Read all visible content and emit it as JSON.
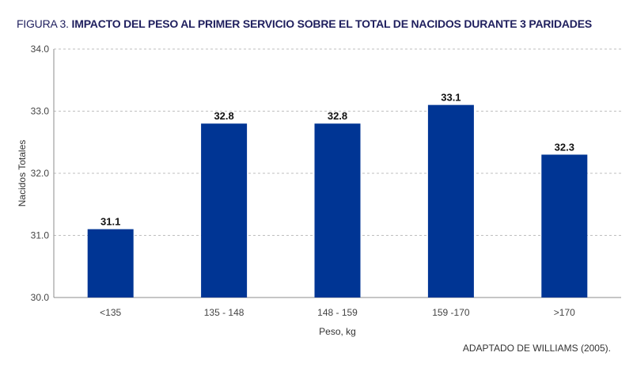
{
  "figure": {
    "number": "FIGURA 3.",
    "title": "IMPACTO DEL PESO AL PRIMER SERVICIO SOBRE EL TOTAL DE NACIDOS DURANTE 3 PARIDADES",
    "source": "ADAPTADO DE WILLIAMS (2005)."
  },
  "chart_data": {
    "type": "bar",
    "categories": [
      "<135",
      "135 - 148",
      "148 - 159",
      "159 -170",
      ">170"
    ],
    "values": [
      31.1,
      32.8,
      32.8,
      33.1,
      32.3
    ],
    "data_labels": [
      "31.1",
      "32.8",
      "32.8",
      "33.1",
      "32.3"
    ],
    "xlabel": "Peso, kg",
    "ylabel": "Nacidos Totales",
    "ylim": [
      30.0,
      34.0
    ],
    "yticks": [
      "30.0",
      "31.0",
      "32.0",
      "33.0",
      "34.0"
    ],
    "grid": "dashed horizontal",
    "bar_color": "#003594"
  }
}
